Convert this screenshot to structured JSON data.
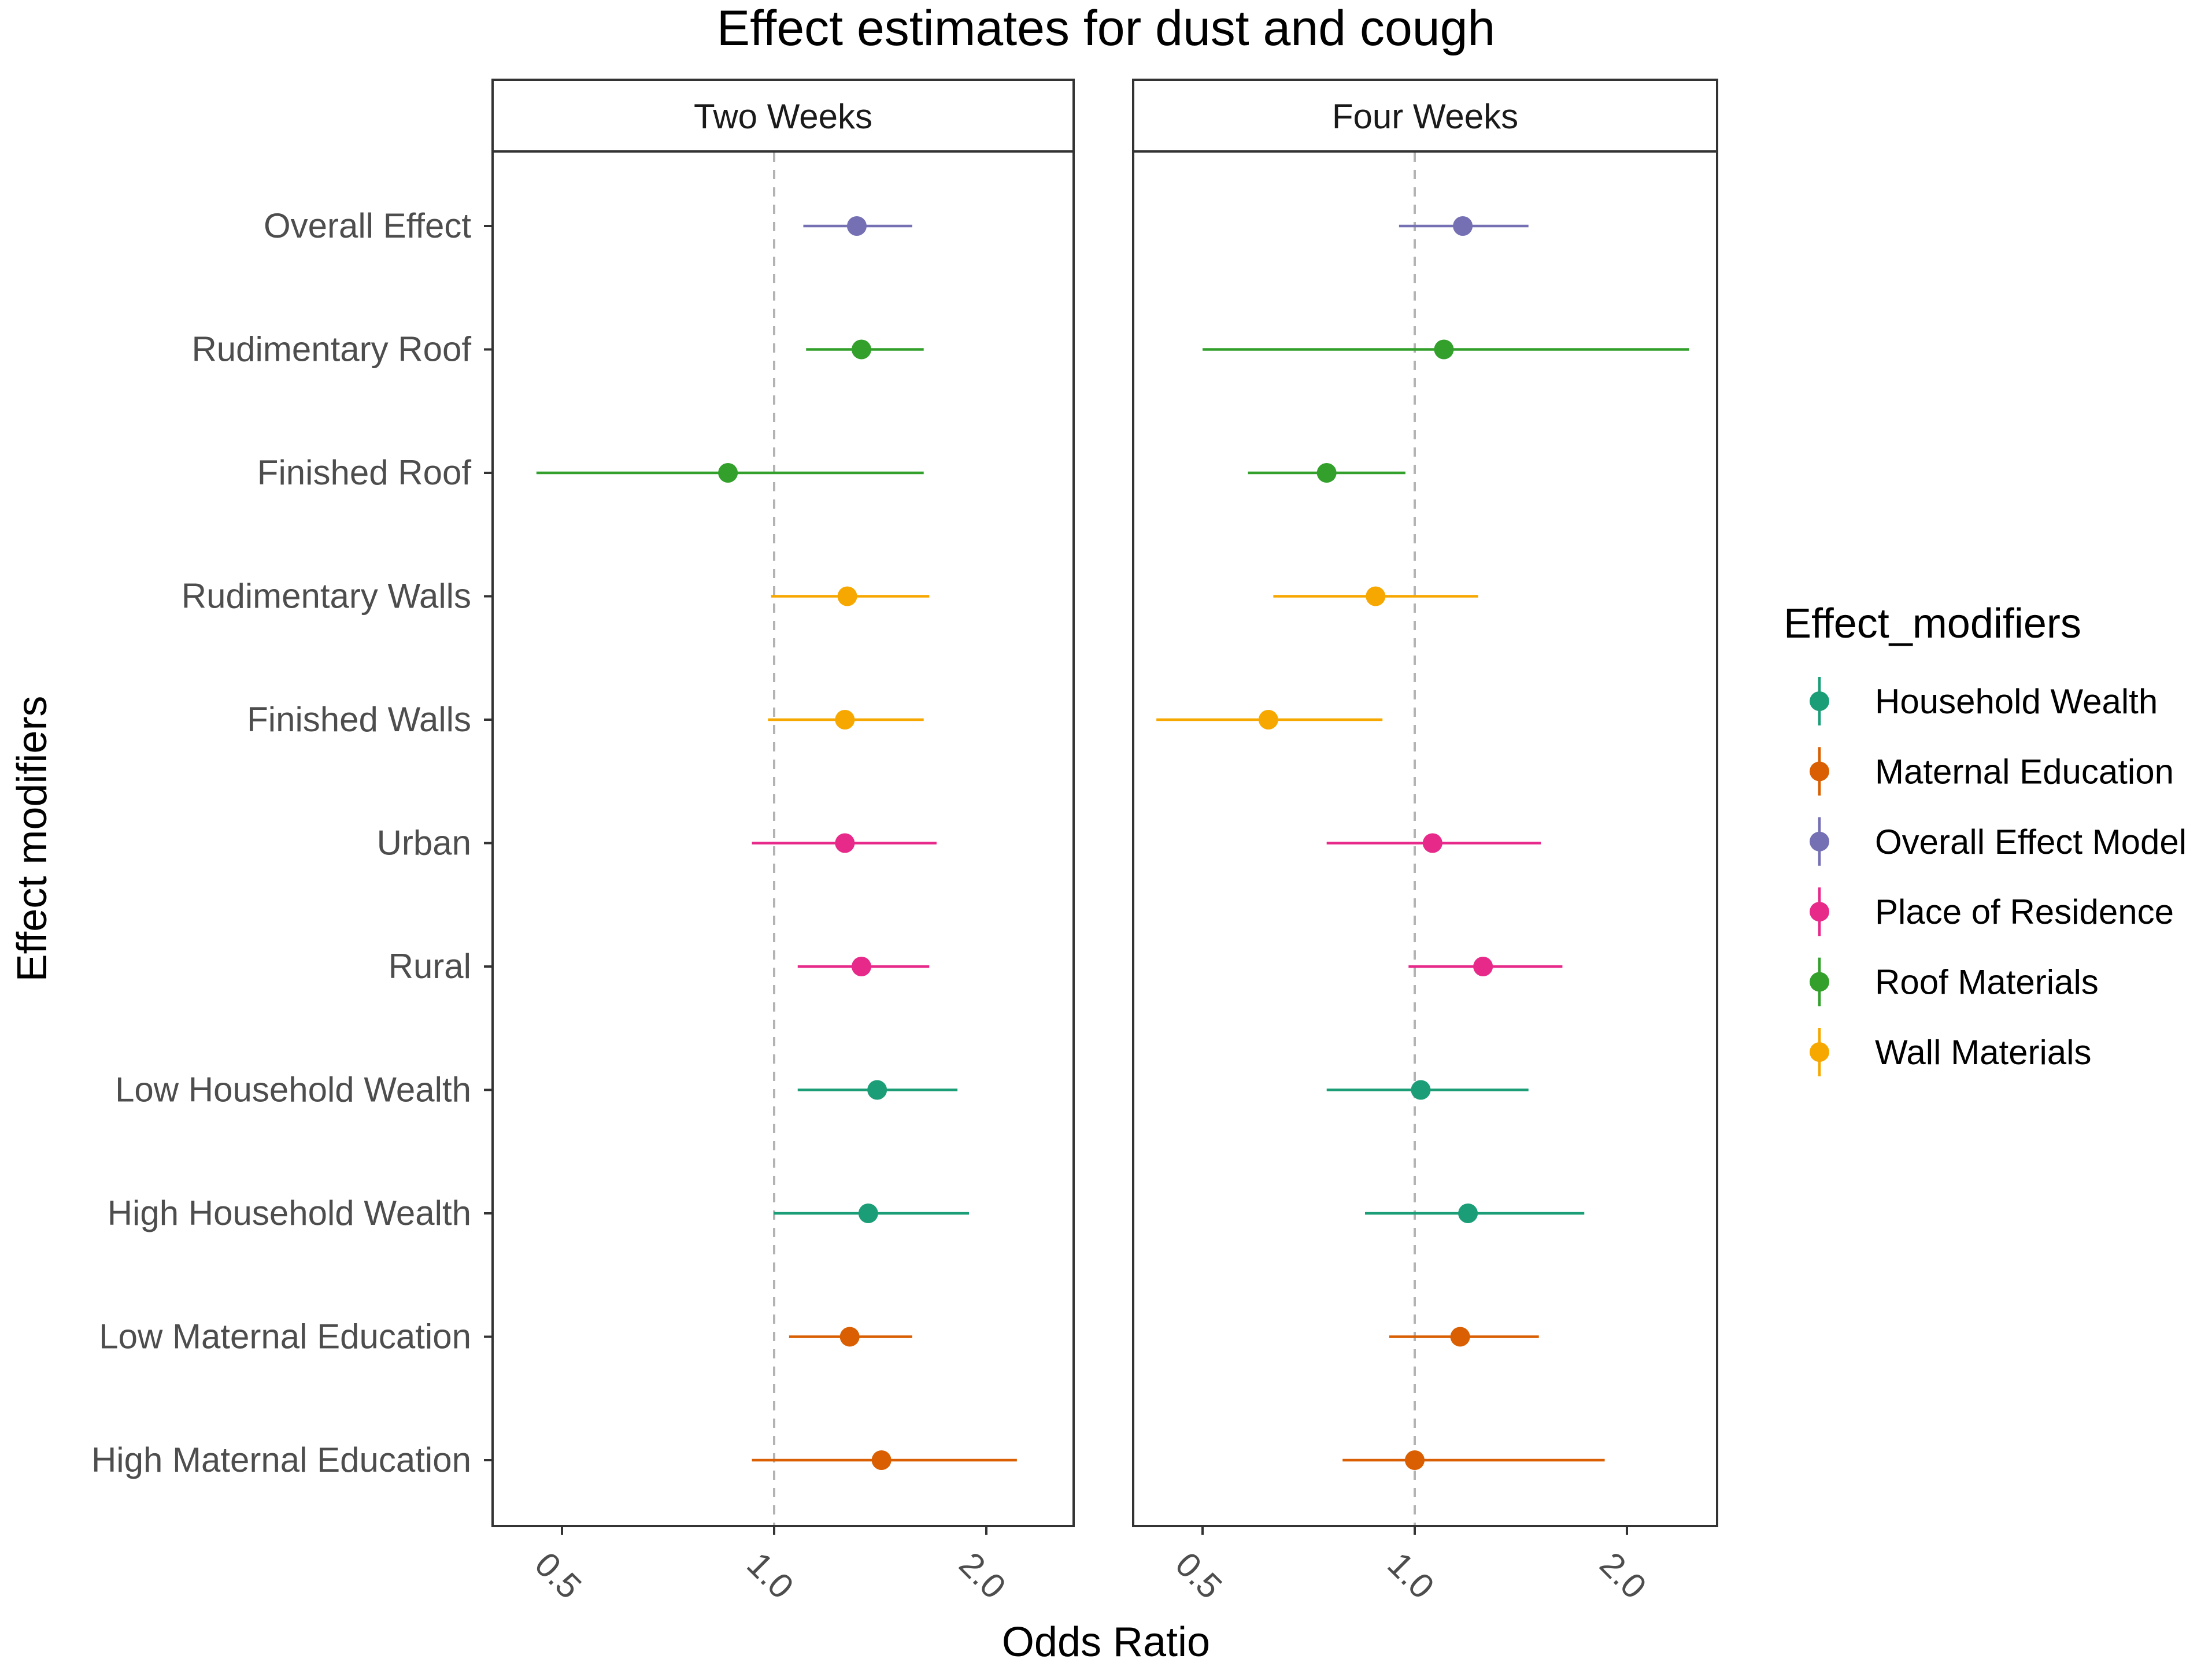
{
  "chart_data": {
    "type": "forest",
    "title": "Effect estimates for dust and cough",
    "xlabel": "Odds Ratio",
    "ylabel": "Effect modifiers",
    "x_scale": "log",
    "xlim": [
      0.4,
      2.8
    ],
    "x_ticks": [
      {
        "value": 0.5,
        "label": "0.5"
      },
      {
        "value": 1.0,
        "label": "1.0"
      },
      {
        "value": 2.0,
        "label": "2.0"
      }
    ],
    "reference_line": 1.0,
    "categories": [
      "Overall Effect",
      "Rudimentary Roof",
      "Finished Roof",
      "Rudimentary Walls",
      "Finished Walls",
      "Urban",
      "Rural",
      "Low Household Wealth",
      "High Household Wealth",
      "Low Maternal Education",
      "High Maternal Education"
    ],
    "legend": {
      "title": "Effect_modifiers",
      "entries": [
        {
          "name": "Household Wealth",
          "color": "#1b9e77"
        },
        {
          "name": "Maternal Education",
          "color": "#d95f02"
        },
        {
          "name": "Overall Effect Model",
          "color": "#7570b3"
        },
        {
          "name": "Place of Residence",
          "color": "#e7298a"
        },
        {
          "name": "Roof Materials",
          "color": "#33a02c"
        },
        {
          "name": "Wall Materials",
          "color": "#f6a800"
        }
      ]
    },
    "panels": [
      {
        "title": "Two Weeks",
        "points": [
          {
            "label": "Overall Effect",
            "group": "Overall Effect Model",
            "or": 1.31,
            "lo": 1.1,
            "hi": 1.57
          },
          {
            "label": "Rudimentary Roof",
            "group": "Roof Materials",
            "or": 1.33,
            "lo": 1.11,
            "hi": 1.63
          },
          {
            "label": "Finished Roof",
            "group": "Roof Materials",
            "or": 0.86,
            "lo": 0.46,
            "hi": 1.63
          },
          {
            "label": "Rudimentary Walls",
            "group": "Wall Materials",
            "or": 1.27,
            "lo": 0.99,
            "hi": 1.66
          },
          {
            "label": "Finished Walls",
            "group": "Wall Materials",
            "or": 1.26,
            "lo": 0.98,
            "hi": 1.63
          },
          {
            "label": "Urban",
            "group": "Place of Residence",
            "or": 1.26,
            "lo": 0.93,
            "hi": 1.7
          },
          {
            "label": "Rural",
            "group": "Place of Residence",
            "or": 1.33,
            "lo": 1.08,
            "hi": 1.66
          },
          {
            "label": "Low Household Wealth",
            "group": "Household Wealth",
            "or": 1.4,
            "lo": 1.08,
            "hi": 1.82
          },
          {
            "label": "High Household Wealth",
            "group": "Household Wealth",
            "or": 1.36,
            "lo": 1.0,
            "hi": 1.89
          },
          {
            "label": "Low Maternal Education",
            "group": "Maternal Education",
            "or": 1.28,
            "lo": 1.05,
            "hi": 1.57
          },
          {
            "label": "High Maternal Education",
            "group": "Maternal Education",
            "or": 1.42,
            "lo": 0.93,
            "hi": 2.21
          }
        ]
      },
      {
        "title": "Four Weeks",
        "points": [
          {
            "label": "Overall Effect",
            "group": "Overall Effect Model",
            "or": 1.17,
            "lo": 0.95,
            "hi": 1.45
          },
          {
            "label": "Rudimentary Roof",
            "group": "Roof Materials",
            "or": 1.1,
            "lo": 0.5,
            "hi": 2.45
          },
          {
            "label": "Finished Roof",
            "group": "Roof Materials",
            "or": 0.75,
            "lo": 0.58,
            "hi": 0.97
          },
          {
            "label": "Rudimentary Walls",
            "group": "Wall Materials",
            "or": 0.88,
            "lo": 0.63,
            "hi": 1.23
          },
          {
            "label": "Finished Walls",
            "group": "Wall Materials",
            "or": 0.62,
            "lo": 0.43,
            "hi": 0.9
          },
          {
            "label": "Urban",
            "group": "Place of Residence",
            "or": 1.06,
            "lo": 0.75,
            "hi": 1.51
          },
          {
            "label": "Rural",
            "group": "Place of Residence",
            "or": 1.25,
            "lo": 0.98,
            "hi": 1.62
          },
          {
            "label": "Low Household Wealth",
            "group": "Household Wealth",
            "or": 1.02,
            "lo": 0.75,
            "hi": 1.45
          },
          {
            "label": "High Household Wealth",
            "group": "Household Wealth",
            "or": 1.19,
            "lo": 0.85,
            "hi": 1.74
          },
          {
            "label": "Low Maternal Education",
            "group": "Maternal Education",
            "or": 1.16,
            "lo": 0.92,
            "hi": 1.5
          },
          {
            "label": "High Maternal Education",
            "group": "Maternal Education",
            "or": 1.0,
            "lo": 0.79,
            "hi": 1.86
          }
        ]
      }
    ]
  }
}
